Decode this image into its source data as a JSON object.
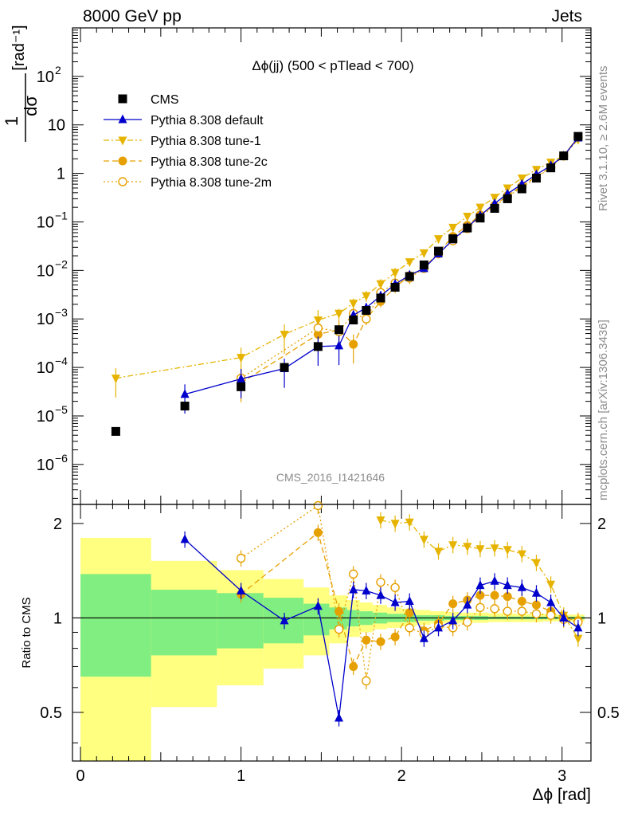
{
  "header": {
    "energy_label": "8000 GeV pp",
    "process_label": "Jets",
    "rivet_label": "Rivet 3.1.10, ≥ 2.6M events",
    "mcplots_label": "mcplots.cern.ch [arXiv:1306.3436]",
    "analysis_label": "CMS_2016_I1421646"
  },
  "chart_data": [
    {
      "panel": "main",
      "type": "scatter",
      "title": "Δϕ(jj) (500 < pTlead <  700)",
      "ylabel_frac": "1 dσ / σ dΔϕ",
      "ylabel_unit": "[rad⁻¹]",
      "yscale": "log",
      "ylim": [
        1.5e-07,
        1000
      ],
      "xlim": [
        -0.05,
        3.18
      ],
      "legend_position": "top-left",
      "series": [
        {
          "name": "CMS",
          "color": "#000000",
          "marker": "square",
          "x": [
            0.22,
            0.65,
            1.0,
            1.27,
            1.48,
            1.61,
            1.7,
            1.78,
            1.87,
            1.96,
            2.05,
            2.14,
            2.23,
            2.32,
            2.41,
            2.49,
            2.58,
            2.66,
            2.75,
            2.84,
            2.93,
            3.01,
            3.1
          ],
          "y": [
            4.8e-06,
            1.6e-05,
            4e-05,
            0.0001,
            0.00027,
            0.0006,
            0.00095,
            0.0015,
            0.0027,
            0.0045,
            0.0075,
            0.013,
            0.025,
            0.045,
            0.075,
            0.12,
            0.19,
            0.3,
            0.48,
            0.8,
            1.3,
            2.3,
            5.8
          ]
        },
        {
          "name": "Pythia 8.308 default",
          "color": "#0000cc",
          "marker": "triangle-up",
          "line": "solid",
          "x": [
            0.65,
            1.0,
            1.27,
            1.48,
            1.61,
            1.7,
            1.78,
            1.87,
            1.96,
            2.05,
            2.14,
            2.23,
            2.32,
            2.41,
            2.49,
            2.58,
            2.66,
            2.75,
            2.84,
            2.93,
            3.01,
            3.1
          ],
          "y": [
            2.8e-05,
            5.8e-05,
            9.5e-05,
            0.00027,
            0.00028,
            0.0012,
            0.0017,
            0.003,
            0.0052,
            0.008,
            0.011,
            0.022,
            0.043,
            0.077,
            0.135,
            0.24,
            0.38,
            0.6,
            0.95,
            1.45,
            2.3,
            5.4
          ]
        },
        {
          "name": "Pythia 8.308 tune-1",
          "color": "#e6b400",
          "marker": "triangle-down",
          "line": "dash-dot",
          "x": [
            0.22,
            1.0,
            1.27,
            1.48,
            1.61,
            1.7,
            1.78,
            1.87,
            1.96,
            2.05,
            2.14,
            2.23,
            2.32,
            2.41,
            2.49,
            2.58,
            2.66,
            2.75,
            2.84,
            2.93,
            3.01,
            3.1
          ],
          "y": [
            6e-05,
            0.00016,
            0.00048,
            0.00095,
            0.0013,
            0.0021,
            0.003,
            0.0053,
            0.009,
            0.015,
            0.023,
            0.045,
            0.077,
            0.13,
            0.2,
            0.32,
            0.5,
            0.8,
            1.2,
            1.7,
            2.3,
            5
          ]
        },
        {
          "name": "Pythia 8.308 tune-2c",
          "color": "#e6a000",
          "marker": "circle",
          "line": "dashed",
          "x": [
            1.0,
            1.48,
            1.61,
            1.7,
            1.78,
            1.87,
            1.96,
            2.05,
            2.14,
            2.23,
            2.32,
            2.41,
            2.49,
            2.58,
            2.66,
            2.75,
            2.84,
            2.93,
            3.01,
            3.1
          ],
          "y": [
            4.8e-05,
            0.00048,
            0.0006,
            0.0003,
            0.001,
            0.0023,
            0.0045,
            0.0078,
            0.011,
            0.024,
            0.05,
            0.085,
            0.14,
            0.22,
            0.35,
            0.55,
            0.85,
            1.35,
            2.3,
            5.7
          ]
        },
        {
          "name": "Pythia 8.308 tune-2m",
          "color": "#e6a000",
          "marker": "circle-open",
          "line": "dotted",
          "x": [
            1.0,
            1.48,
            1.61,
            1.7,
            1.78,
            1.87,
            1.96,
            2.05,
            2.14,
            2.23,
            2.32,
            2.41,
            2.49,
            2.58,
            2.66,
            2.75,
            2.84,
            2.93,
            3.01,
            3.1
          ],
          "y": [
            6e-05,
            0.00065,
            0.00055,
            0.0013,
            0.001,
            0.0035,
            0.0055,
            0.007,
            0.011,
            0.022,
            0.041,
            0.073,
            0.13,
            0.21,
            0.33,
            0.52,
            0.82,
            1.32,
            2.3,
            5.6
          ]
        }
      ]
    },
    {
      "panel": "ratio",
      "type": "line",
      "ylabel": "Ratio to CMS",
      "ylim": [
        0.35,
        2.3
      ],
      "yticks": [
        0.5,
        1,
        2
      ],
      "xticks": [
        0,
        1,
        2,
        3
      ],
      "xlabel": "Δϕ [rad]",
      "reference_line": 1,
      "uncertainty_bands": {
        "edges": [
          0.0,
          0.44,
          0.85,
          1.14,
          1.39,
          1.55,
          1.66,
          1.74,
          1.82,
          1.91,
          2.0,
          2.09,
          2.18,
          2.27,
          2.36,
          2.45,
          2.54,
          2.62,
          2.71,
          2.8,
          2.88,
          2.97,
          3.06,
          3.14
        ],
        "inner_color": "#80ee80",
        "outer_color": "#ffff80",
        "inner_lo": [
          0.65,
          0.76,
          0.8,
          0.83,
          0.88,
          0.92,
          0.94,
          0.95,
          0.96,
          0.97,
          0.97,
          0.98,
          0.98,
          0.985,
          0.985,
          0.985,
          0.99,
          0.99,
          0.99,
          0.99,
          0.99,
          0.99,
          0.99
        ],
        "inner_hi": [
          1.38,
          1.23,
          1.2,
          1.16,
          1.11,
          1.08,
          1.06,
          1.05,
          1.04,
          1.03,
          1.03,
          1.02,
          1.02,
          1.015,
          1.015,
          1.015,
          1.01,
          1.01,
          1.01,
          1.01,
          1.01,
          1.01,
          1.01
        ],
        "outer_lo": [
          0.35,
          0.52,
          0.61,
          0.69,
          0.76,
          0.83,
          0.87,
          0.9,
          0.92,
          0.93,
          0.94,
          0.95,
          0.96,
          0.96,
          0.965,
          0.965,
          0.97,
          0.97,
          0.97,
          0.97,
          0.975,
          0.975,
          0.975
        ],
        "outer_hi": [
          1.8,
          1.52,
          1.42,
          1.33,
          1.25,
          1.18,
          1.14,
          1.12,
          1.1,
          1.08,
          1.07,
          1.06,
          1.05,
          1.045,
          1.04,
          1.04,
          1.035,
          1.035,
          1.03,
          1.03,
          1.03,
          1.025,
          1.025
        ]
      },
      "series": [
        {
          "name": "Pythia 8.308 default",
          "color": "#0000cc",
          "marker": "triangle-up",
          "line": "solid",
          "x": [
            0.65,
            1.0,
            1.27,
            1.48,
            1.61,
            1.7,
            1.78,
            1.87,
            1.96,
            2.05,
            2.14,
            2.23,
            2.32,
            2.41,
            2.49,
            2.58,
            2.66,
            2.75,
            2.84,
            2.93,
            3.01,
            3.1
          ],
          "y": [
            1.78,
            1.22,
            0.98,
            1.09,
            0.48,
            1.23,
            1.22,
            1.18,
            1.12,
            1.13,
            0.86,
            0.93,
            0.98,
            1.1,
            1.27,
            1.31,
            1.27,
            1.25,
            1.2,
            1.12,
            1.0,
            0.93
          ]
        },
        {
          "name": "Pythia 8.308 tune-1",
          "color": "#e6b400",
          "marker": "triangle-down",
          "line": "dash-dot",
          "x": [
            1.87,
            1.96,
            2.05,
            2.14,
            2.23,
            2.32,
            2.41,
            2.49,
            2.58,
            2.66,
            2.75,
            2.84,
            2.93,
            3.01,
            3.1
          ],
          "y": [
            2.05,
            2.0,
            2.02,
            1.78,
            1.63,
            1.71,
            1.69,
            1.66,
            1.67,
            1.65,
            1.6,
            1.5,
            1.28,
            1.02,
            0.86
          ]
        },
        {
          "name": "Pythia 8.308 tune-2c",
          "color": "#e6a000",
          "marker": "circle",
          "line": "dashed",
          "x": [
            1.0,
            1.48,
            1.61,
            1.7,
            1.78,
            1.87,
            1.96,
            2.05,
            2.14,
            2.23,
            2.32,
            2.41,
            2.49,
            2.58,
            2.66,
            2.75,
            2.84,
            2.93,
            3.01,
            3.1
          ],
          "y": [
            1.19,
            1.87,
            1.05,
            0.7,
            0.85,
            0.84,
            0.87,
            1.04,
            0.91,
            0.96,
            1.11,
            1.14,
            1.18,
            1.18,
            1.17,
            1.13,
            1.1,
            1.05,
            1.0,
            0.98
          ]
        },
        {
          "name": "Pythia 8.308 tune-2m",
          "color": "#e6a000",
          "marker": "circle-open",
          "line": "dotted",
          "x": [
            1.0,
            1.48,
            1.61,
            1.7,
            1.78,
            1.87,
            1.96,
            2.05,
            2.14,
            2.23,
            2.32,
            2.41,
            2.49,
            2.58,
            2.66,
            2.75,
            2.84,
            2.93,
            3.01,
            3.1
          ],
          "y": [
            1.55,
            2.28,
            0.92,
            1.38,
            0.63,
            1.3,
            1.25,
            0.93,
            0.89,
            0.94,
            0.93,
            0.97,
            1.08,
            1.07,
            1.05,
            1.05,
            1.03,
            1.02,
            0.99,
            0.97
          ]
        }
      ]
    }
  ]
}
